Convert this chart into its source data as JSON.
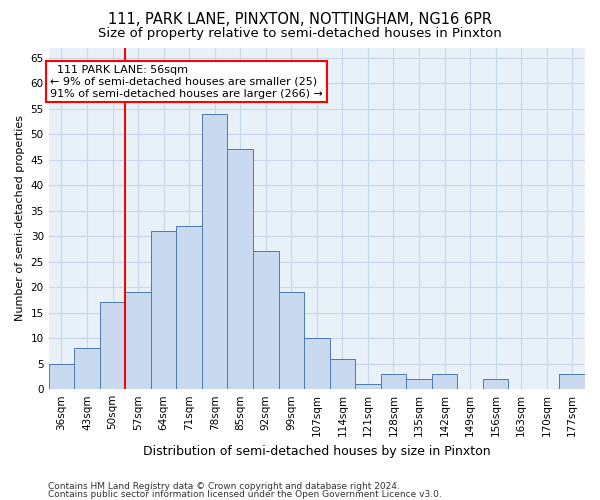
{
  "title1": "111, PARK LANE, PINXTON, NOTTINGHAM, NG16 6PR",
  "title2": "Size of property relative to semi-detached houses in Pinxton",
  "xlabel": "Distribution of semi-detached houses by size in Pinxton",
  "ylabel": "Number of semi-detached properties",
  "categories": [
    "36sqm",
    "43sqm",
    "50sqm",
    "57sqm",
    "64sqm",
    "71sqm",
    "78sqm",
    "85sqm",
    "92sqm",
    "99sqm",
    "107sqm",
    "114sqm",
    "121sqm",
    "128sqm",
    "135sqm",
    "142sqm",
    "149sqm",
    "156sqm",
    "163sqm",
    "170sqm",
    "177sqm"
  ],
  "values": [
    5,
    8,
    17,
    19,
    31,
    32,
    54,
    47,
    27,
    19,
    10,
    6,
    1,
    3,
    2,
    3,
    0,
    2,
    0,
    0,
    3
  ],
  "bar_color": "#c9daf0",
  "bar_edge_color": "#4a7ab5",
  "vline_x": 2.5,
  "highlight_label": "111 PARK LANE: 56sqm",
  "annotation_line1": "← 9% of semi-detached houses are smaller (25)",
  "annotation_line2": "91% of semi-detached houses are larger (266) →",
  "annotation_box_color": "white",
  "annotation_box_edge": "red",
  "vline_color": "red",
  "ylim_max": 67,
  "yticks": [
    0,
    5,
    10,
    15,
    20,
    25,
    30,
    35,
    40,
    45,
    50,
    55,
    60,
    65
  ],
  "grid_color": "#c8d8ea",
  "background_color": "#e8f0f8",
  "footer1": "Contains HM Land Registry data © Crown copyright and database right 2024.",
  "footer2": "Contains public sector information licensed under the Open Government Licence v3.0.",
  "title1_fontsize": 10.5,
  "title2_fontsize": 9.5,
  "xlabel_fontsize": 9,
  "ylabel_fontsize": 8,
  "tick_fontsize": 7.5,
  "annot_fontsize": 8,
  "footer_fontsize": 6.5
}
